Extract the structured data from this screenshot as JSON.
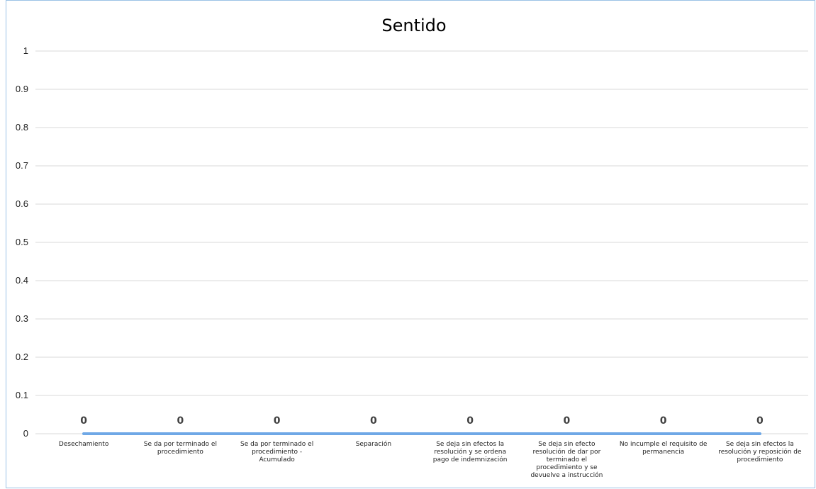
{
  "chart_data": {
    "type": "line",
    "title": "Sentido",
    "xlabel": "",
    "ylabel": "",
    "ylim": [
      0,
      1
    ],
    "yticks": [
      "0",
      "0.1",
      "0.2",
      "0.3",
      "0.4",
      "0.5",
      "0.6",
      "0.7",
      "0.8",
      "0.9",
      "1"
    ],
    "grid": true,
    "legend": "none",
    "categories": [
      "Desechamiento",
      "Se da por terminado el procedimiento",
      "Se da por terminado el procedimiento - Acumulado",
      "Separación",
      "Se deja sin efectos la resolución y se ordena pago de indemnización",
      "Se deja sin efecto resolución de dar por terminado el procedimiento y se devuelve a instrucción",
      "No incumple el requisito de permanencia",
      "Se deja sin efectos la resolución y reposición de procedimiento"
    ],
    "category_lines": [
      [
        "Desechamiento"
      ],
      [
        "Se da por terminado el",
        "procedimiento"
      ],
      [
        "Se da por terminado el",
        "procedimiento -",
        "Acumulado"
      ],
      [
        "Separación"
      ],
      [
        "Se deja sin efectos la",
        "resolución y se ordena",
        "pago de indemnización"
      ],
      [
        "Se deja sin efecto",
        "resolución de dar por",
        "terminado el",
        "procedimiento y se",
        "devuelve a instrucción"
      ],
      [
        "No incumple el requisito de",
        "permanencia"
      ],
      [
        "Se deja sin efectos la",
        "resolución y reposición de",
        "procedimiento"
      ]
    ],
    "series": [
      {
        "values": [
          0,
          0,
          0,
          0,
          0,
          0,
          0,
          0
        ],
        "data_labels": [
          "0",
          "0",
          "0",
          "0",
          "0",
          "0",
          "0",
          "0"
        ]
      }
    ],
    "colors": {
      "series": "#6fa8e6",
      "grid": "#d9d9d9",
      "frame": "#9bc2e6"
    }
  }
}
